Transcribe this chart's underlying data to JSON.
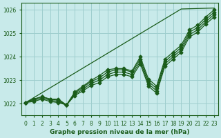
{
  "title": "Graphe pression niveau de la mer (hPa)",
  "bg_color": "#c8eaea",
  "grid_color": "#9ecece",
  "line_color": "#1a5c1a",
  "text_color": "#1a5c1a",
  "xlim": [
    -0.5,
    23.5
  ],
  "ylim": [
    1021.5,
    1026.3
  ],
  "xticks": [
    0,
    1,
    2,
    3,
    4,
    5,
    6,
    7,
    8,
    9,
    10,
    11,
    12,
    13,
    14,
    15,
    16,
    17,
    18,
    19,
    20,
    21,
    22,
    23
  ],
  "yticks": [
    1022,
    1023,
    1024,
    1025,
    1026
  ],
  "series": [
    [
      1022.05,
      1022.2,
      1022.3,
      1022.2,
      1022.2,
      1021.95,
      1022.5,
      1022.75,
      1023.0,
      1023.2,
      1023.45,
      1023.5,
      1023.5,
      1023.4,
      1024.0,
      1023.05,
      1022.75,
      1023.9,
      1024.2,
      1024.5,
      1025.15,
      1025.35,
      1025.7,
      1026.0
    ],
    [
      1022.05,
      1022.2,
      1022.3,
      1022.2,
      1022.15,
      1021.95,
      1022.45,
      1022.7,
      1022.95,
      1023.1,
      1023.35,
      1023.45,
      1023.45,
      1023.35,
      1023.9,
      1022.95,
      1022.65,
      1023.8,
      1024.1,
      1024.4,
      1025.05,
      1025.25,
      1025.6,
      1025.9
    ],
    [
      1022.05,
      1022.15,
      1022.25,
      1022.15,
      1022.1,
      1021.95,
      1022.4,
      1022.62,
      1022.87,
      1023.0,
      1023.25,
      1023.35,
      1023.35,
      1023.25,
      1023.8,
      1022.85,
      1022.55,
      1023.7,
      1024.0,
      1024.3,
      1024.95,
      1025.15,
      1025.5,
      1025.8
    ],
    [
      1022.05,
      1022.1,
      1022.2,
      1022.1,
      1022.05,
      1021.95,
      1022.35,
      1022.55,
      1022.78,
      1022.9,
      1023.15,
      1023.25,
      1023.25,
      1023.15,
      1023.7,
      1022.75,
      1022.45,
      1023.6,
      1023.9,
      1024.2,
      1024.85,
      1025.05,
      1025.4,
      1025.7
    ],
    [
      1022.05,
      1022.26,
      1022.47,
      1022.68,
      1022.89,
      1023.1,
      1023.31,
      1023.52,
      1023.73,
      1023.94,
      1024.15,
      1024.36,
      1024.57,
      1024.78,
      1024.99,
      1025.2,
      1025.41,
      1025.62,
      1025.83,
      1026.04,
      1026.05,
      1026.06,
      1026.07,
      1026.08
    ]
  ],
  "marker": "D",
  "markersize": 2.5,
  "linewidth": 0.9,
  "tick_labelsize": 5.5,
  "xlabel_fontsize": 6.5
}
